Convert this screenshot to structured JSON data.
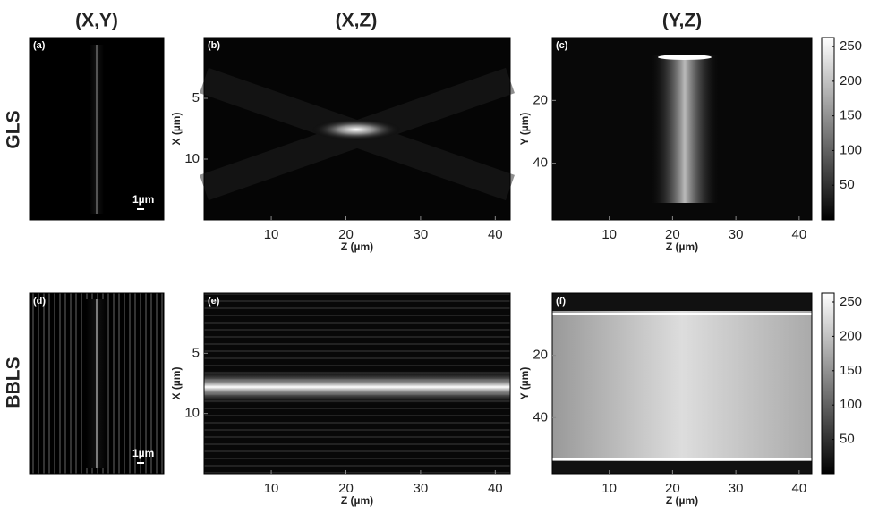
{
  "column_titles": [
    "(X,Y)",
    "(X,Z)",
    "(Y,Z)"
  ],
  "row_labels": [
    "GLS",
    "BBLS"
  ],
  "panels": [
    {
      "label": "(a)",
      "scale_bar": "1µm"
    },
    {
      "label": "(b)",
      "xlabel": "Z (µm)",
      "ylabel": "X (µm)",
      "xlim": [
        1,
        42
      ],
      "ylim": [
        0,
        15
      ],
      "xticks": [
        10,
        20,
        30,
        40
      ],
      "yticks": [
        5,
        10
      ]
    },
    {
      "label": "(c)",
      "xlabel": "Z (µm)",
      "ylabel": "Y (µm)",
      "xlim": [
        1,
        42
      ],
      "ylim": [
        0,
        58
      ],
      "xticks": [
        10,
        20,
        30,
        40
      ],
      "yticks": [
        20,
        40
      ]
    },
    {
      "label": "(d)",
      "scale_bar": "1µm"
    },
    {
      "label": "(e)",
      "xlabel": "Z (µm)",
      "ylabel": "X (µm)",
      "xlim": [
        1,
        42
      ],
      "ylim": [
        0,
        15
      ],
      "xticks": [
        10,
        20,
        30,
        40
      ],
      "yticks": [
        5,
        10
      ]
    },
    {
      "label": "(f)",
      "xlabel": "Z (µm)",
      "ylabel": "Y (µm)",
      "xlim": [
        1,
        42
      ],
      "ylim": [
        0,
        58
      ],
      "xticks": [
        10,
        20,
        30,
        40
      ],
      "yticks": [
        20,
        40
      ]
    }
  ],
  "colorbars": [
    {
      "lim": [
        0,
        263
      ],
      "ticks": [
        50,
        100,
        150,
        200,
        250
      ]
    },
    {
      "lim": [
        0,
        263
      ],
      "ticks": [
        50,
        100,
        150,
        200,
        250
      ]
    }
  ]
}
